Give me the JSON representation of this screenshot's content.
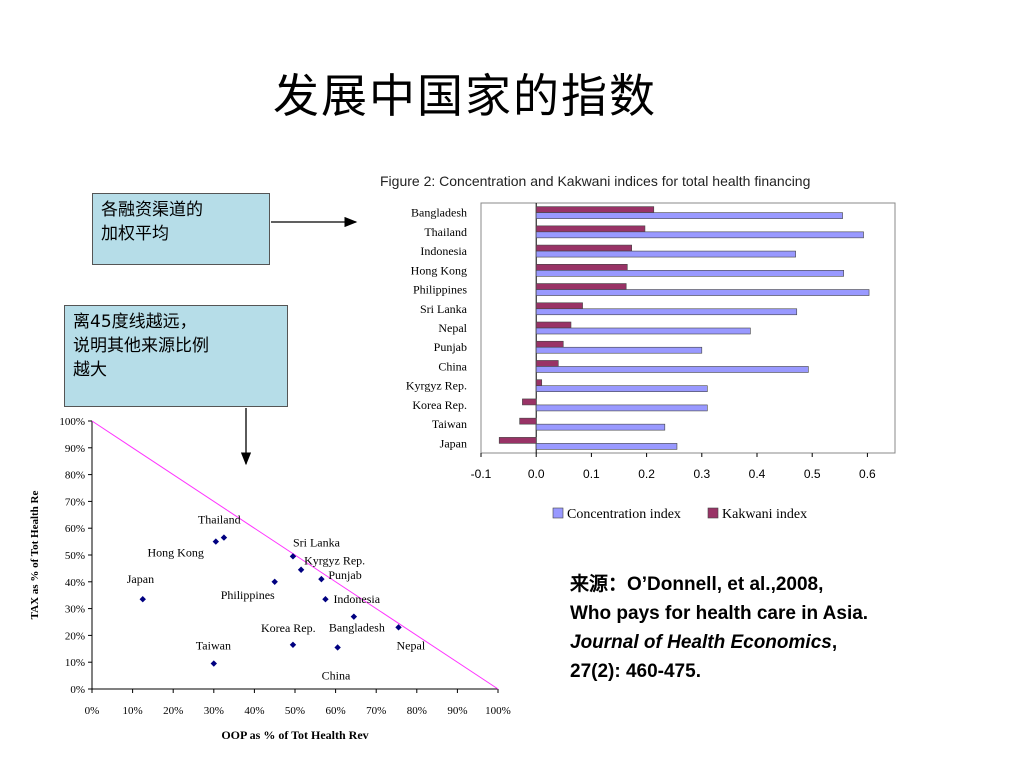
{
  "title": "发展中国家的指数",
  "note1": {
    "lines": [
      "各融资渠道的",
      "加权平均"
    ]
  },
  "note2": {
    "lines": [
      "离45度线越远，",
      "说明其他来源比例",
      "越大"
    ]
  },
  "source": {
    "line1": "来源：O’Donnell, et al.,2008,",
    "line2": "Who pays for health care in Asia.",
    "line3_italic": "Journal of Health Economics",
    "line3_rest": ",",
    "line4": "27(2): 460-475."
  },
  "colors": {
    "concentration": "#9999ff",
    "kakwani": "#993366",
    "diagonal": "#ff33ff",
    "marker": "#000080",
    "note_bg": "#b6dde8"
  },
  "chart_data": [
    {
      "type": "bar",
      "orientation": "horizontal",
      "title": "Figure 2: Concentration and Kakwani indices for total health financing",
      "categories": [
        "Bangladesh",
        "Thailand",
        "Indonesia",
        "Hong Kong",
        "Philippines",
        "Sri Lanka",
        "Nepal",
        "Punjab",
        "China",
        "Kyrgyz Rep.",
        "Korea Rep.",
        "Taiwan",
        "Japan"
      ],
      "series": [
        {
          "name": "Concentration index",
          "values": [
            0.555,
            0.593,
            0.47,
            0.557,
            0.603,
            0.472,
            0.388,
            0.3,
            0.493,
            0.31,
            0.31,
            0.233,
            0.255
          ]
        },
        {
          "name": "Kakwani index",
          "values": [
            0.213,
            0.197,
            0.173,
            0.165,
            0.163,
            0.084,
            0.063,
            0.049,
            0.04,
            0.01,
            -0.025,
            -0.03,
            -0.067
          ]
        }
      ],
      "xlim": [
        -0.1,
        0.65
      ],
      "xticks": [
        "-0.1",
        "0.0",
        "0.1",
        "0.2",
        "0.3",
        "0.4",
        "0.5",
        "0.6"
      ],
      "grid": false,
      "legend": "bottom"
    },
    {
      "type": "scatter",
      "xlabel": "OOP as % of Tot Health Rev",
      "ylabel": "TAX as % of Tot Health Re",
      "xlim": [
        0,
        100
      ],
      "ylim": [
        0,
        100
      ],
      "xticks": [
        "0%",
        "10%",
        "20%",
        "30%",
        "40%",
        "50%",
        "60%",
        "70%",
        "80%",
        "90%",
        "100%"
      ],
      "yticks": [
        "0%",
        "10%",
        "20%",
        "30%",
        "40%",
        "50%",
        "60%",
        "70%",
        "80%",
        "90%",
        "100%"
      ],
      "reference_line": {
        "from": [
          0,
          100
        ],
        "to": [
          100,
          0
        ]
      },
      "points": [
        {
          "label": "Thailand",
          "x": 32.5,
          "y": 56.5
        },
        {
          "label": "Hong Kong",
          "x": 30.5,
          "y": 55
        },
        {
          "label": "Sri Lanka",
          "x": 49.5,
          "y": 49.5
        },
        {
          "label": "Kyrgyz Rep.",
          "x": 51.5,
          "y": 44.5
        },
        {
          "label": "Punjab",
          "x": 56.5,
          "y": 41
        },
        {
          "label": "Japan",
          "x": 12.5,
          "y": 33.5
        },
        {
          "label": "Philippines",
          "x": 45,
          "y": 40
        },
        {
          "label": "Indonesia",
          "x": 57.5,
          "y": 33.5
        },
        {
          "label": "Bangladesh",
          "x": 64.5,
          "y": 27
        },
        {
          "label": "Korea Rep.",
          "x": 49.5,
          "y": 16.5
        },
        {
          "label": "Nepal",
          "x": 75.5,
          "y": 23
        },
        {
          "label": "Taiwan",
          "x": 30,
          "y": 9.5
        },
        {
          "label": "China",
          "x": 60.5,
          "y": 15.5
        }
      ]
    }
  ]
}
